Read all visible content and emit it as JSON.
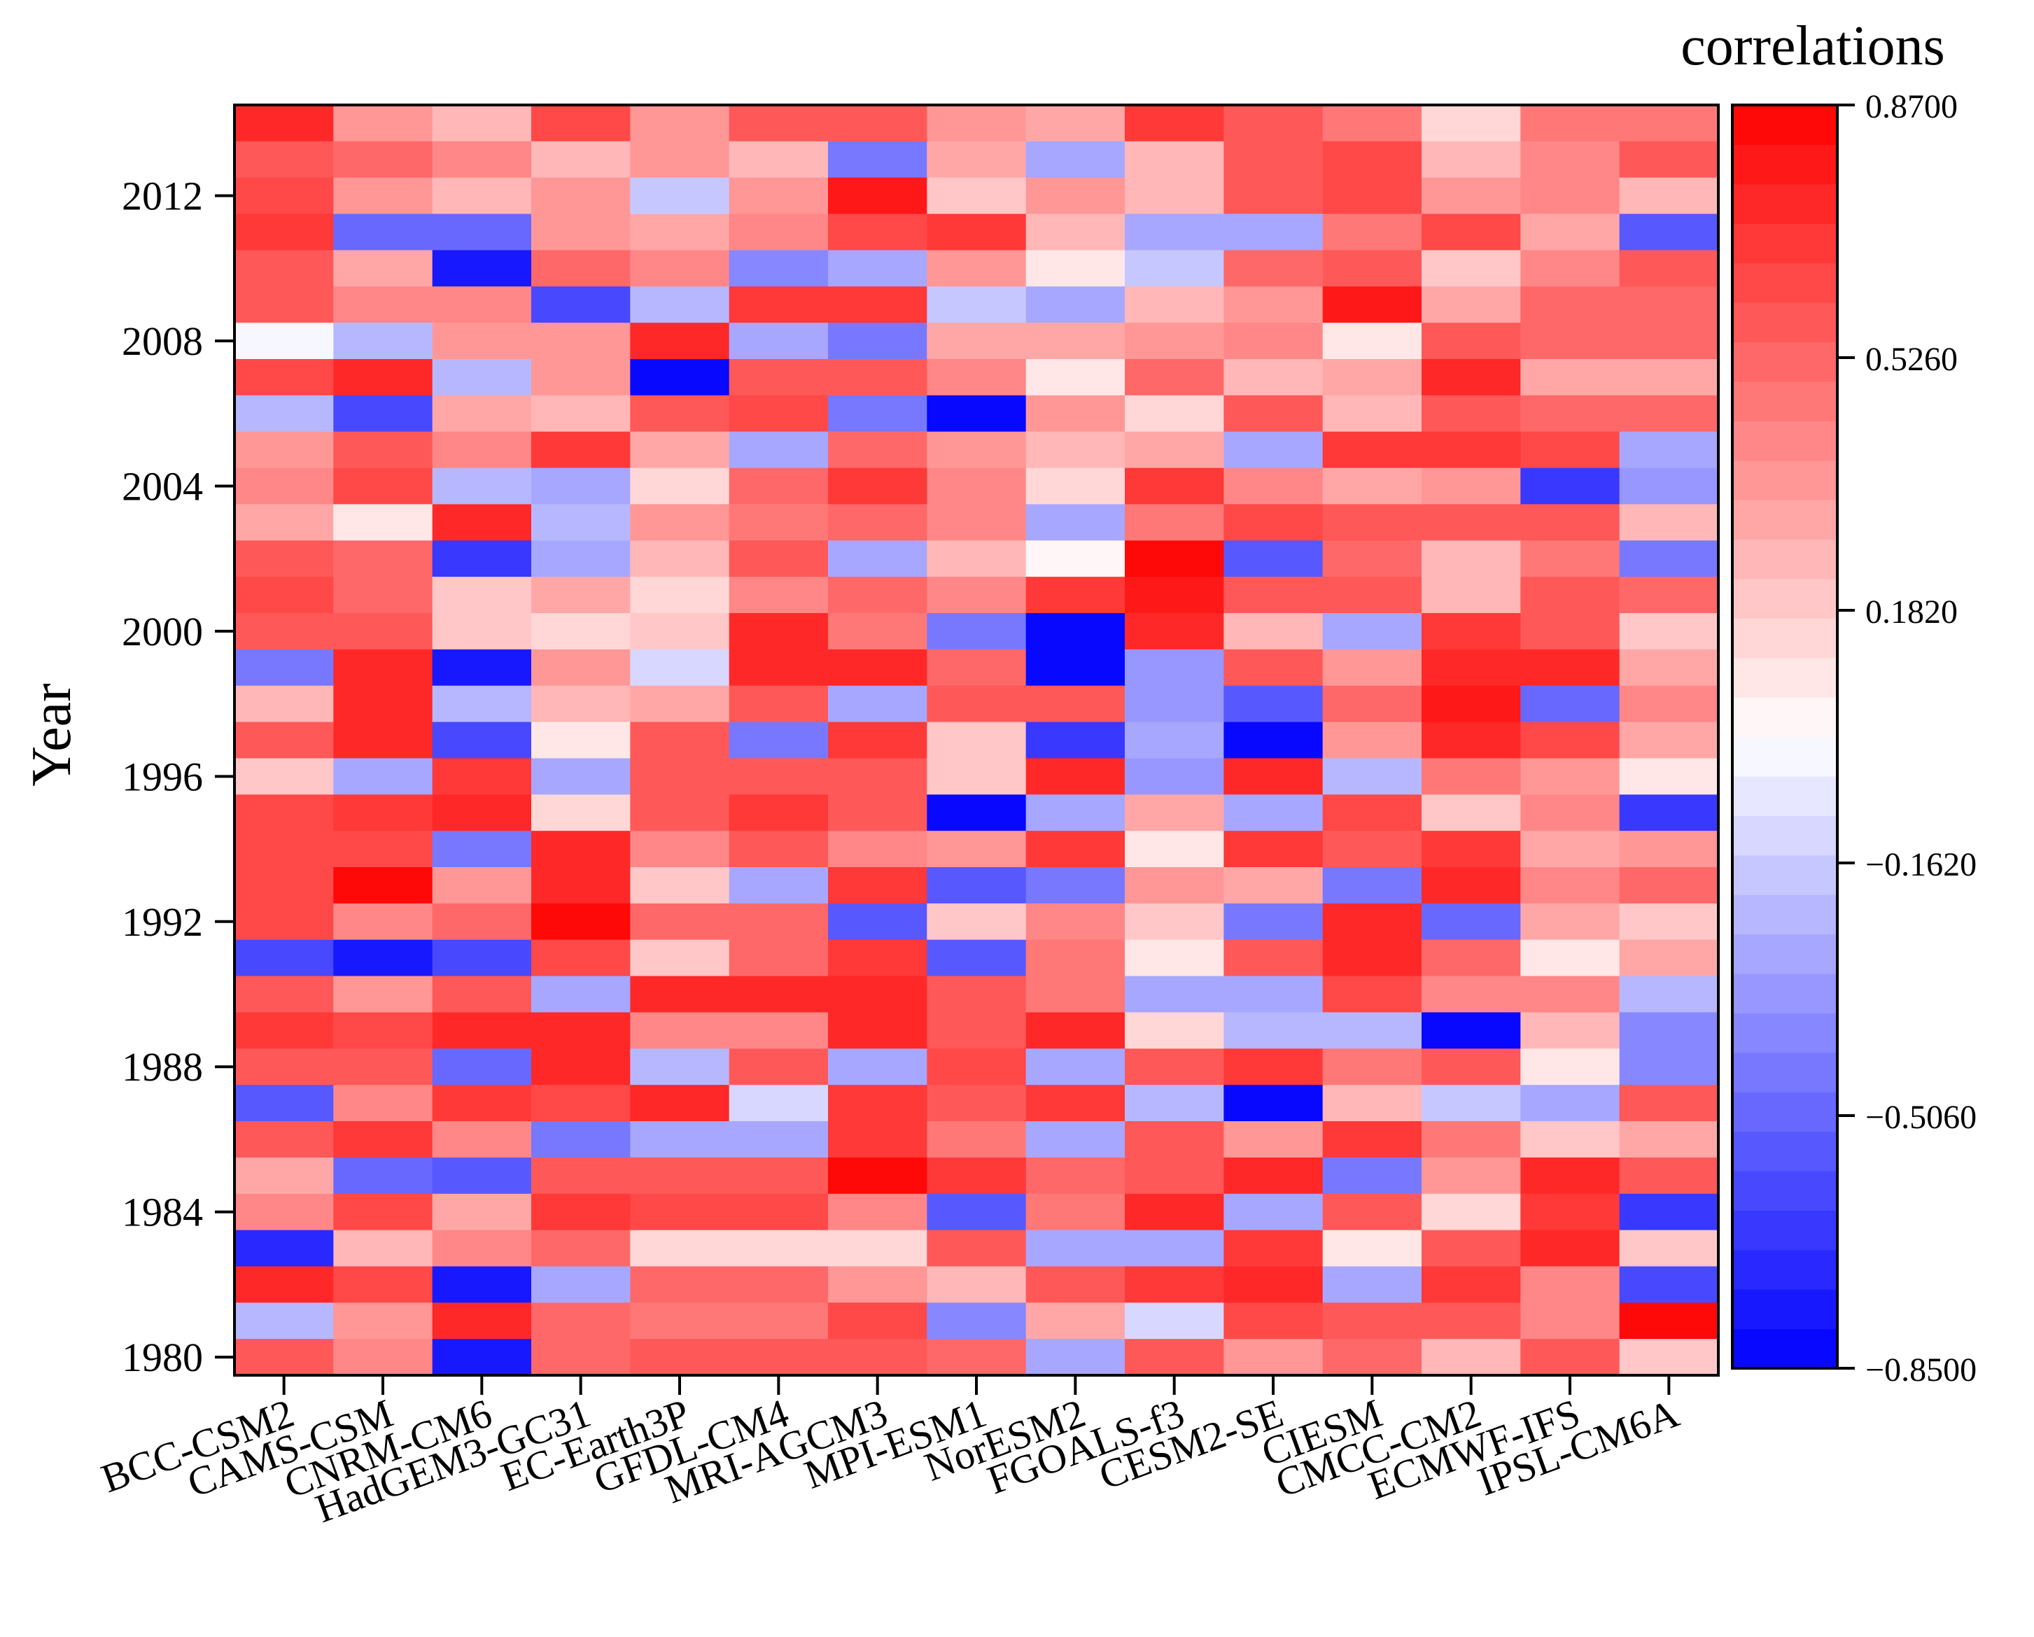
{
  "chart_data": {
    "type": "heatmap",
    "title": "",
    "xlabel": "",
    "ylabel": "Year",
    "colorbar_title": "correlations",
    "colorbar_ticks": [
      "0.8700",
      "0.5260",
      "0.1820",
      "−0.1620",
      "−0.5060",
      "−0.8500"
    ],
    "colorbar_range": [
      -0.85,
      0.87
    ],
    "colormap": {
      "low": "#0000ff",
      "mid": "#ffffff",
      "high": "#ff0000"
    },
    "models": [
      "BCC-CSM2",
      "CAMS-CSM",
      "CNRM-CM6",
      "HadGEM3-GC31",
      "EC-Earth3P",
      "GFDL-CM4",
      "MRI-AGCM3",
      "MPI-ESM1",
      "NorESM2",
      "FGOALS-f3",
      "CESM2-SE",
      "CIESM",
      "CMCC-CM2",
      "ECMWF-IFS",
      "IPSL-CM6A"
    ],
    "year_ticks": [
      "2012",
      "2008",
      "2004",
      "2000",
      "1996",
      "1992",
      "1988",
      "1984",
      "1980"
    ],
    "years": [
      2014,
      2013,
      2012,
      2011,
      2010,
      2009,
      2008,
      2007,
      2006,
      2005,
      2004,
      2003,
      2002,
      2001,
      2000,
      1999,
      1998,
      1997,
      1996,
      1995,
      1994,
      1993,
      1992,
      1991,
      1990,
      1989,
      1988,
      1987,
      1986,
      1985,
      1984,
      1983,
      1982,
      1981,
      1980
    ],
    "values": [
      [
        0.75,
        0.35,
        0.25,
        0.65,
        0.35,
        0.55,
        0.55,
        0.35,
        0.3,
        0.7,
        0.55,
        0.45,
        0.15,
        0.45,
        0.45
      ],
      [
        0.6,
        0.5,
        0.4,
        0.25,
        0.35,
        0.25,
        -0.45,
        0.3,
        -0.3,
        0.25,
        0.55,
        0.65,
        0.25,
        0.4,
        0.6
      ],
      [
        0.65,
        0.35,
        0.25,
        0.35,
        -0.2,
        0.35,
        0.8,
        0.2,
        0.35,
        0.25,
        0.55,
        0.65,
        0.35,
        0.4,
        0.25
      ],
      [
        0.7,
        -0.5,
        -0.5,
        0.35,
        0.3,
        0.4,
        0.65,
        0.7,
        0.25,
        -0.3,
        -0.3,
        0.45,
        0.65,
        0.3,
        -0.55
      ],
      [
        0.6,
        0.3,
        -0.75,
        0.5,
        0.4,
        -0.4,
        -0.3,
        0.35,
        0.1,
        -0.2,
        0.5,
        0.55,
        0.2,
        0.4,
        0.6
      ],
      [
        0.55,
        0.4,
        0.4,
        -0.6,
        -0.25,
        0.7,
        0.7,
        -0.2,
        -0.3,
        0.25,
        0.35,
        0.8,
        0.3,
        0.5,
        0.5
      ],
      [
        0.0,
        -0.25,
        0.35,
        0.35,
        0.75,
        -0.3,
        -0.45,
        0.3,
        0.3,
        0.35,
        0.4,
        0.1,
        0.6,
        0.5,
        0.5
      ],
      [
        0.65,
        0.75,
        -0.25,
        0.35,
        -0.85,
        0.55,
        0.55,
        0.4,
        0.1,
        0.5,
        0.25,
        0.3,
        0.75,
        0.3,
        0.3
      ],
      [
        -0.25,
        -0.6,
        0.3,
        0.25,
        0.55,
        0.65,
        -0.45,
        -0.85,
        0.35,
        0.15,
        0.6,
        0.25,
        0.6,
        0.5,
        0.5
      ],
      [
        0.35,
        0.6,
        0.4,
        0.7,
        0.3,
        -0.3,
        0.5,
        0.35,
        0.25,
        0.3,
        -0.3,
        0.7,
        0.7,
        0.65,
        -0.3
      ],
      [
        0.4,
        0.65,
        -0.25,
        -0.3,
        0.15,
        0.5,
        0.7,
        0.4,
        0.15,
        0.7,
        0.4,
        0.3,
        0.35,
        -0.65,
        -0.35
      ],
      [
        0.3,
        0.1,
        0.75,
        -0.25,
        0.35,
        0.45,
        0.5,
        0.4,
        -0.3,
        0.45,
        0.65,
        0.6,
        0.6,
        0.6,
        0.25
      ],
      [
        0.6,
        0.5,
        -0.65,
        -0.3,
        0.25,
        0.55,
        -0.3,
        0.25,
        0.05,
        0.85,
        -0.55,
        0.5,
        0.25,
        0.45,
        -0.45
      ],
      [
        0.65,
        0.5,
        0.2,
        0.3,
        0.15,
        0.4,
        0.5,
        0.4,
        0.7,
        0.8,
        0.6,
        0.6,
        0.25,
        0.6,
        0.5
      ],
      [
        0.6,
        0.6,
        0.2,
        0.15,
        0.2,
        0.75,
        0.45,
        -0.45,
        -0.85,
        0.75,
        0.25,
        -0.3,
        0.7,
        0.55,
        0.2
      ],
      [
        -0.45,
        0.75,
        -0.75,
        0.35,
        -0.1,
        0.75,
        0.75,
        0.5,
        -0.85,
        -0.35,
        0.6,
        0.35,
        0.75,
        0.75,
        0.3
      ],
      [
        0.25,
        0.75,
        -0.25,
        0.25,
        0.3,
        0.6,
        -0.3,
        0.55,
        0.55,
        -0.35,
        -0.55,
        0.5,
        0.8,
        -0.5,
        0.4
      ],
      [
        0.55,
        0.75,
        -0.6,
        0.1,
        0.6,
        -0.45,
        0.7,
        0.2,
        -0.65,
        -0.3,
        -0.85,
        0.35,
        0.75,
        0.65,
        0.3
      ],
      [
        0.2,
        -0.3,
        0.7,
        -0.3,
        0.6,
        0.55,
        0.6,
        0.2,
        0.75,
        -0.35,
        0.75,
        -0.25,
        0.45,
        0.35,
        0.1
      ],
      [
        0.65,
        0.7,
        0.75,
        0.15,
        0.6,
        0.7,
        0.55,
        -0.85,
        -0.3,
        0.3,
        -0.3,
        0.65,
        0.2,
        0.4,
        -0.65
      ],
      [
        0.65,
        0.65,
        -0.45,
        0.75,
        0.4,
        0.55,
        0.4,
        0.35,
        0.7,
        0.1,
        0.7,
        0.55,
        0.7,
        0.3,
        0.35
      ],
      [
        0.65,
        0.85,
        0.35,
        0.75,
        0.2,
        -0.3,
        0.7,
        -0.55,
        -0.45,
        0.35,
        0.3,
        -0.45,
        0.75,
        0.4,
        0.5
      ],
      [
        0.65,
        0.4,
        0.5,
        0.85,
        0.5,
        0.5,
        -0.55,
        0.2,
        0.4,
        0.2,
        -0.45,
        0.75,
        -0.5,
        0.3,
        0.2
      ],
      [
        -0.6,
        -0.75,
        -0.6,
        0.65,
        0.2,
        0.5,
        0.7,
        -0.55,
        0.45,
        0.1,
        0.55,
        0.75,
        0.5,
        0.1,
        0.3
      ],
      [
        0.6,
        0.35,
        0.6,
        -0.3,
        0.75,
        0.75,
        0.75,
        0.55,
        0.45,
        -0.3,
        -0.3,
        0.65,
        0.4,
        0.4,
        -0.25
      ],
      [
        0.7,
        0.65,
        0.75,
        0.75,
        0.4,
        0.4,
        0.75,
        0.55,
        0.75,
        0.15,
        -0.25,
        -0.25,
        -0.85,
        0.25,
        -0.4
      ],
      [
        0.55,
        0.55,
        -0.5,
        0.75,
        -0.25,
        0.55,
        -0.3,
        0.65,
        -0.3,
        0.6,
        0.7,
        0.45,
        0.6,
        0.1,
        -0.4
      ],
      [
        -0.55,
        0.4,
        0.7,
        0.65,
        0.75,
        -0.1,
        0.7,
        0.55,
        0.7,
        -0.25,
        -0.85,
        0.25,
        -0.2,
        -0.3,
        0.6
      ],
      [
        0.55,
        0.7,
        0.4,
        -0.45,
        -0.3,
        -0.3,
        0.7,
        0.45,
        -0.3,
        0.6,
        0.35,
        0.7,
        0.45,
        0.2,
        0.3
      ],
      [
        0.3,
        -0.5,
        -0.55,
        0.55,
        0.6,
        0.6,
        0.85,
        0.7,
        0.5,
        0.55,
        0.75,
        -0.45,
        0.35,
        0.75,
        0.6
      ],
      [
        0.4,
        0.65,
        0.3,
        0.7,
        0.65,
        0.65,
        0.4,
        -0.55,
        0.45,
        0.75,
        -0.3,
        0.55,
        0.15,
        0.7,
        -0.65
      ],
      [
        -0.7,
        0.25,
        0.4,
        0.5,
        0.15,
        0.15,
        0.15,
        0.6,
        -0.3,
        -0.3,
        0.7,
        0.1,
        0.6,
        0.75,
        0.2
      ],
      [
        0.75,
        0.65,
        -0.75,
        -0.3,
        0.5,
        0.5,
        0.35,
        0.25,
        0.55,
        0.7,
        0.75,
        -0.3,
        0.7,
        0.4,
        -0.6
      ],
      [
        -0.25,
        0.35,
        0.75,
        0.5,
        0.45,
        0.45,
        0.65,
        -0.4,
        0.3,
        -0.15,
        0.65,
        0.55,
        0.6,
        0.4,
        0.87
      ],
      [
        0.6,
        0.4,
        -0.75,
        0.5,
        0.55,
        0.55,
        0.55,
        0.5,
        -0.3,
        0.6,
        0.35,
        0.5,
        0.25,
        0.55,
        0.2
      ]
    ]
  }
}
